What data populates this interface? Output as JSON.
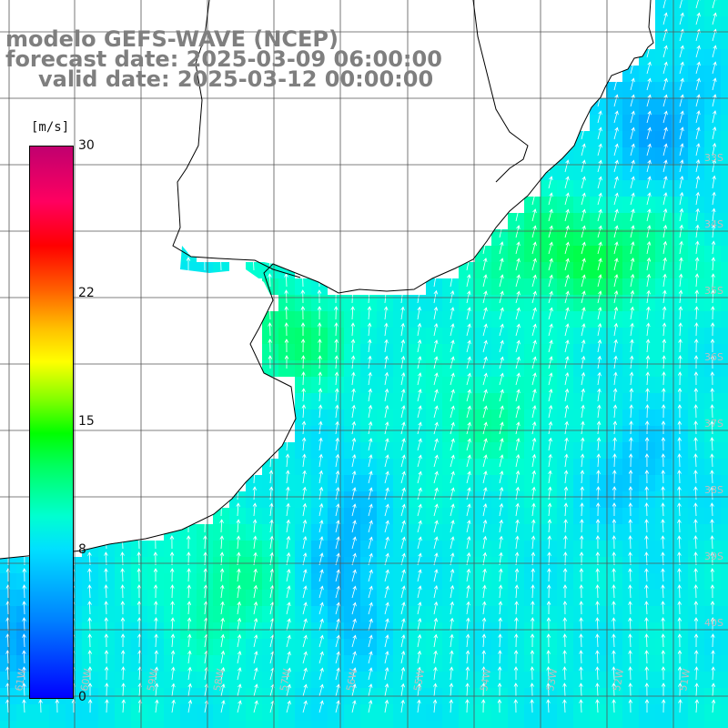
{
  "title": {
    "line1": "modelo GEFS-WAVE (NCEP)",
    "line2": "forecast date: 2025-03-09 06:00:00",
    "line3": "valid date: 2025-03-12 00:00:00"
  },
  "colorbar": {
    "unit": "[m/s]",
    "ticks": [
      {
        "label": "30",
        "value": 30
      },
      {
        "label": "22",
        "value": 22
      },
      {
        "label": "15",
        "value": 15
      },
      {
        "label": "8",
        "value": 8
      },
      {
        "label": "0",
        "value": 0
      }
    ],
    "range": [
      0,
      30
    ]
  },
  "map": {
    "lat_labels": [
      "33S",
      "34S",
      "35S",
      "36S",
      "37S",
      "38S",
      "39S",
      "40S"
    ],
    "lon_labels": [
      "61W",
      "60W",
      "59W",
      "58W",
      "57W",
      "56W",
      "55W",
      "54W",
      "53W",
      "52W",
      "51W"
    ],
    "colors": {
      "land": "#ffffff",
      "grid": "#555555",
      "coast": "#000000",
      "arrow": "#ffffff",
      "text": "#7f7f7f"
    }
  }
}
